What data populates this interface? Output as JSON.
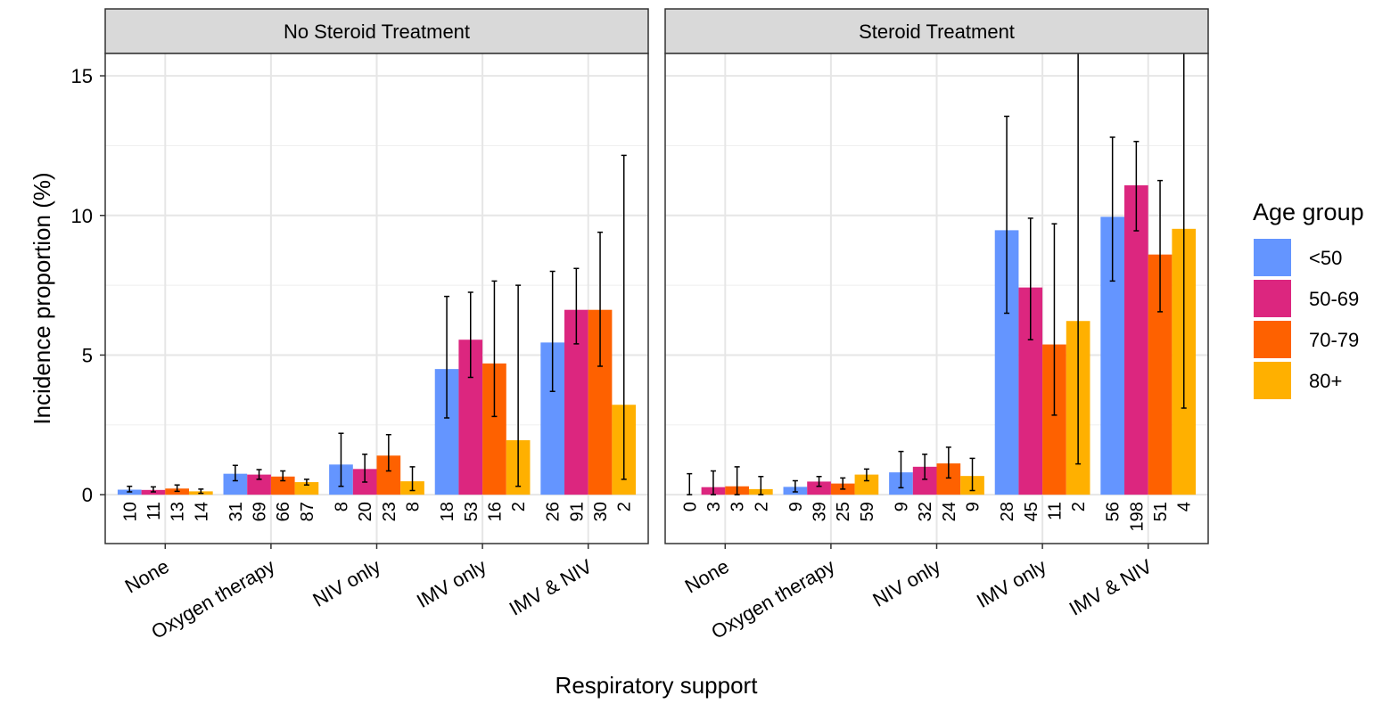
{
  "chart_data": {
    "type": "bar",
    "ylabel": "Incidence proportion (%)",
    "xlabel": "Respiratory support",
    "legend_title": "Age group",
    "facets": [
      "No Steroid Treatment",
      "Steroid Treatment"
    ],
    "categories": [
      "None",
      "Oxygen therapy",
      "NIV only",
      "IMV only",
      "IMV & NIV"
    ],
    "ylim": [
      -1.75,
      15.8
    ],
    "yticks": [
      0,
      5,
      10,
      15
    ],
    "minor_yticks": [
      2.5,
      7.5,
      12.5
    ],
    "grid": true,
    "series": [
      {
        "name": "<50",
        "color": "#6495ff",
        "values": [
          [
            0.18,
            0.75,
            1.08,
            4.5,
            5.45
          ],
          [
            0,
            0.28,
            0.8,
            9.47,
            9.95
          ]
        ],
        "ci_low": [
          [
            0.1,
            0.5,
            0.3,
            2.75,
            3.7
          ],
          [
            0,
            0.1,
            0.25,
            6.5,
            7.65
          ]
        ],
        "ci_high": [
          [
            0.3,
            1.05,
            2.2,
            7.1,
            8.0
          ],
          [
            0.75,
            0.5,
            1.55,
            13.55,
            12.8
          ]
        ],
        "counts": [
          [
            10,
            31,
            8,
            18,
            26
          ],
          [
            0,
            9,
            9,
            28,
            56
          ]
        ]
      },
      {
        "name": "50-69",
        "color": "#dc267f",
        "values": [
          [
            0.17,
            0.72,
            0.92,
            5.55,
            6.62
          ],
          [
            0.27,
            0.47,
            1.0,
            7.42,
            11.08
          ]
        ],
        "ci_low": [
          [
            0.1,
            0.55,
            0.45,
            4.2,
            5.4
          ],
          [
            0,
            0.3,
            0.55,
            5.55,
            9.45
          ]
        ],
        "ci_high": [
          [
            0.28,
            0.9,
            1.45,
            7.25,
            8.1
          ],
          [
            0.85,
            0.65,
            1.45,
            9.9,
            12.65
          ]
        ],
        "counts": [
          [
            11,
            69,
            20,
            53,
            91
          ],
          [
            3,
            39,
            32,
            45,
            198
          ]
        ]
      },
      {
        "name": "70-79",
        "color": "#fe6100",
        "values": [
          [
            0.22,
            0.65,
            1.4,
            4.7,
            6.62
          ],
          [
            0.3,
            0.4,
            1.12,
            5.38,
            8.6
          ]
        ],
        "ci_low": [
          [
            0.12,
            0.5,
            0.85,
            2.8,
            4.6
          ],
          [
            0,
            0.2,
            0.6,
            2.85,
            6.55
          ]
        ],
        "ci_high": [
          [
            0.35,
            0.85,
            2.15,
            7.65,
            9.4
          ],
          [
            1.0,
            0.6,
            1.7,
            9.7,
            11.25
          ]
        ],
        "counts": [
          [
            13,
            66,
            23,
            16,
            30
          ],
          [
            3,
            25,
            24,
            11,
            51
          ]
        ]
      },
      {
        "name": "80+",
        "color": "#ffb000",
        "values": [
          [
            0.12,
            0.45,
            0.48,
            1.95,
            3.22
          ],
          [
            0.2,
            0.72,
            0.67,
            6.22,
            9.52
          ]
        ],
        "ci_low": [
          [
            0.05,
            0.35,
            0.15,
            0.3,
            0.55
          ],
          [
            0,
            0.5,
            0.15,
            1.1,
            3.1
          ]
        ],
        "ci_high": [
          [
            0.2,
            0.55,
            1.0,
            7.5,
            12.15
          ],
          [
            0.65,
            0.92,
            1.3,
            16.5,
            16.5
          ]
        ],
        "counts": [
          [
            14,
            87,
            8,
            2,
            2
          ],
          [
            2,
            59,
            9,
            2,
            4
          ]
        ]
      }
    ]
  }
}
